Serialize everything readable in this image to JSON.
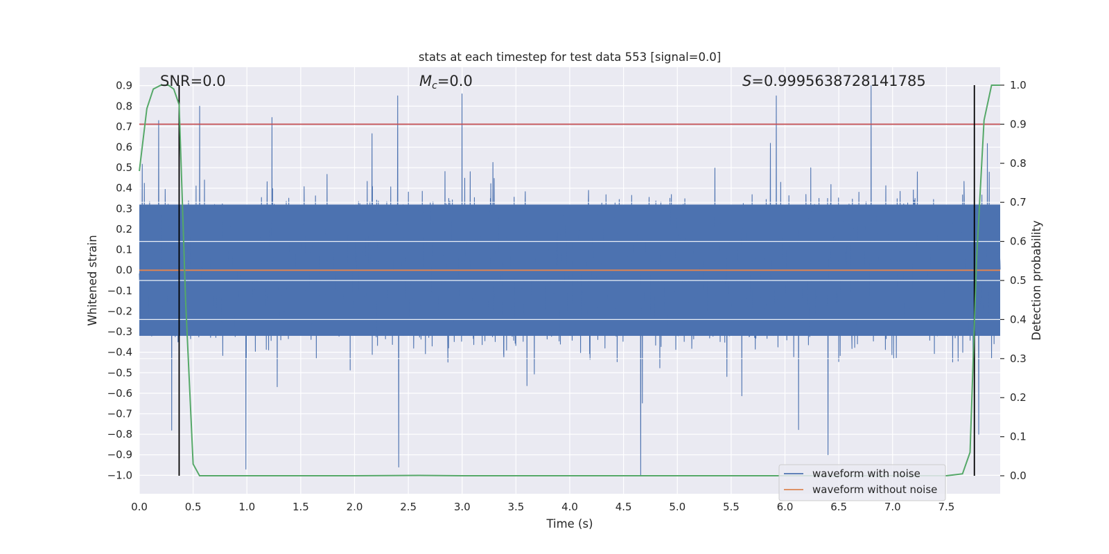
{
  "chart_data": {
    "type": "line",
    "title": "stats at each timestep for test data 553 [signal=0.0]",
    "xlabel": "Time (s)",
    "ylabel": "Whitened strain",
    "y2label": "Detection probability",
    "xlim": [
      0.0,
      8.0
    ],
    "ylim": [
      -1.09,
      0.99
    ],
    "y2lim": [
      -0.046,
      1.046
    ],
    "xticks": [
      "0.0",
      "0.5",
      "1.0",
      "1.5",
      "2.0",
      "2.5",
      "3.0",
      "3.5",
      "4.0",
      "4.5",
      "5.0",
      "5.5",
      "6.0",
      "6.5",
      "7.0",
      "7.5"
    ],
    "yticks": [
      "0.9",
      "0.8",
      "0.7",
      "0.6",
      "0.5",
      "0.4",
      "0.3",
      "0.2",
      "0.1",
      "0.0",
      "−0.1",
      "−0.2",
      "−0.3",
      "−0.4",
      "−0.5",
      "−0.6",
      "−0.7",
      "−0.8",
      "−0.9",
      "−1.0"
    ],
    "y2ticks": [
      "1.0",
      "0.9",
      "0.8",
      "0.7",
      "0.6",
      "0.5",
      "0.4",
      "0.3",
      "0.2",
      "0.1",
      "0.0"
    ],
    "annotations": {
      "snr": "SNR=0.0",
      "mc": "=0.0",
      "mc_symbol": "M",
      "mc_sub": "c",
      "s": "=0.9995638728141785",
      "s_symbol": "S"
    },
    "threshold_line": {
      "y2": 0.9,
      "color": "#c44e52"
    },
    "window_lines_x": [
      0.37,
      7.76
    ],
    "series": [
      {
        "name": "waveform with noise",
        "axis": "left",
        "color": "#4c72b0",
        "kind": "noise",
        "core_range": [
          -0.32,
          0.32
        ],
        "typical_peak": 0.5,
        "notable_peaks": [
          {
            "x": 0.18,
            "y": 0.73
          },
          {
            "x": 0.56,
            "y": 0.8
          },
          {
            "x": 2.4,
            "y": 0.85
          },
          {
            "x": 5.92,
            "y": 0.85
          },
          {
            "x": 6.8,
            "y": 0.9
          },
          {
            "x": 0.3,
            "y": -0.78
          },
          {
            "x": 0.99,
            "y": -0.97
          },
          {
            "x": 2.41,
            "y": -0.96
          },
          {
            "x": 4.66,
            "y": -1.0
          },
          {
            "x": 6.4,
            "y": -0.9
          },
          {
            "x": 7.8,
            "y": -0.8
          }
        ]
      },
      {
        "name": "waveform without noise",
        "axis": "left",
        "color": "#dd8452",
        "x": [
          0.0,
          8.0
        ],
        "y": [
          0.0,
          0.0
        ]
      },
      {
        "name": "detection probability",
        "axis": "right",
        "color": "#55a868",
        "x": [
          0.0,
          0.07,
          0.13,
          0.2,
          0.27,
          0.32,
          0.37,
          0.43,
          0.5,
          0.56,
          1.0,
          2.0,
          2.6,
          3.0,
          4.0,
          5.0,
          6.0,
          7.0,
          7.5,
          7.65,
          7.72,
          7.78,
          7.85,
          7.92,
          8.0
        ],
        "y": [
          0.78,
          0.94,
          0.99,
          1.0,
          1.0,
          0.99,
          0.95,
          0.45,
          0.03,
          0.0,
          0.0,
          0.0,
          0.001,
          0.0,
          0.0,
          0.0,
          0.0,
          0.0,
          0.0,
          0.005,
          0.06,
          0.55,
          0.91,
          1.0,
          1.0
        ]
      }
    ],
    "legend": {
      "position": "lower right",
      "entries": [
        "waveform with noise",
        "waveform without noise"
      ]
    }
  }
}
